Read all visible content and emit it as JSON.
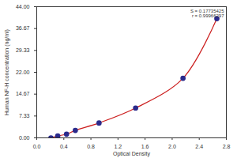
{
  "chart_data": {
    "type": "line",
    "xlabel": "Optical Density",
    "ylabel": "Human NF-H concentration (ng/ml)",
    "annotations": [
      "S = 0.17735425",
      "r = 0.99966297"
    ],
    "x": [
      0.21,
      0.31,
      0.44,
      0.57,
      0.92,
      1.46,
      2.16,
      2.66
    ],
    "series": [
      {
        "type": "line",
        "color": "#cc1f1f",
        "values": [
          0,
          0.625,
          1.25,
          2.5,
          5,
          10,
          20,
          40
        ]
      },
      {
        "type": "scatter",
        "color": "#2b2b8c",
        "marker": "circle",
        "values": [
          0,
          0.625,
          1.25,
          2.5,
          5,
          10,
          20,
          40
        ]
      }
    ],
    "xlim": [
      0,
      2.8
    ],
    "xticks": [
      {
        "value": 0,
        "label": "0.0"
      },
      0.4,
      0.8,
      1.2,
      1.6,
      {
        "value": 2,
        "label": "2.0"
      },
      2.4,
      2.8
    ],
    "ylim": [
      0,
      44
    ],
    "yticks": [
      {
        "value": 0,
        "label": "0.00"
      },
      7.33,
      14.67,
      {
        "value": 22,
        "label": "22.00"
      },
      29.33,
      36.67,
      {
        "value": 44,
        "label": "44.00"
      }
    ]
  }
}
